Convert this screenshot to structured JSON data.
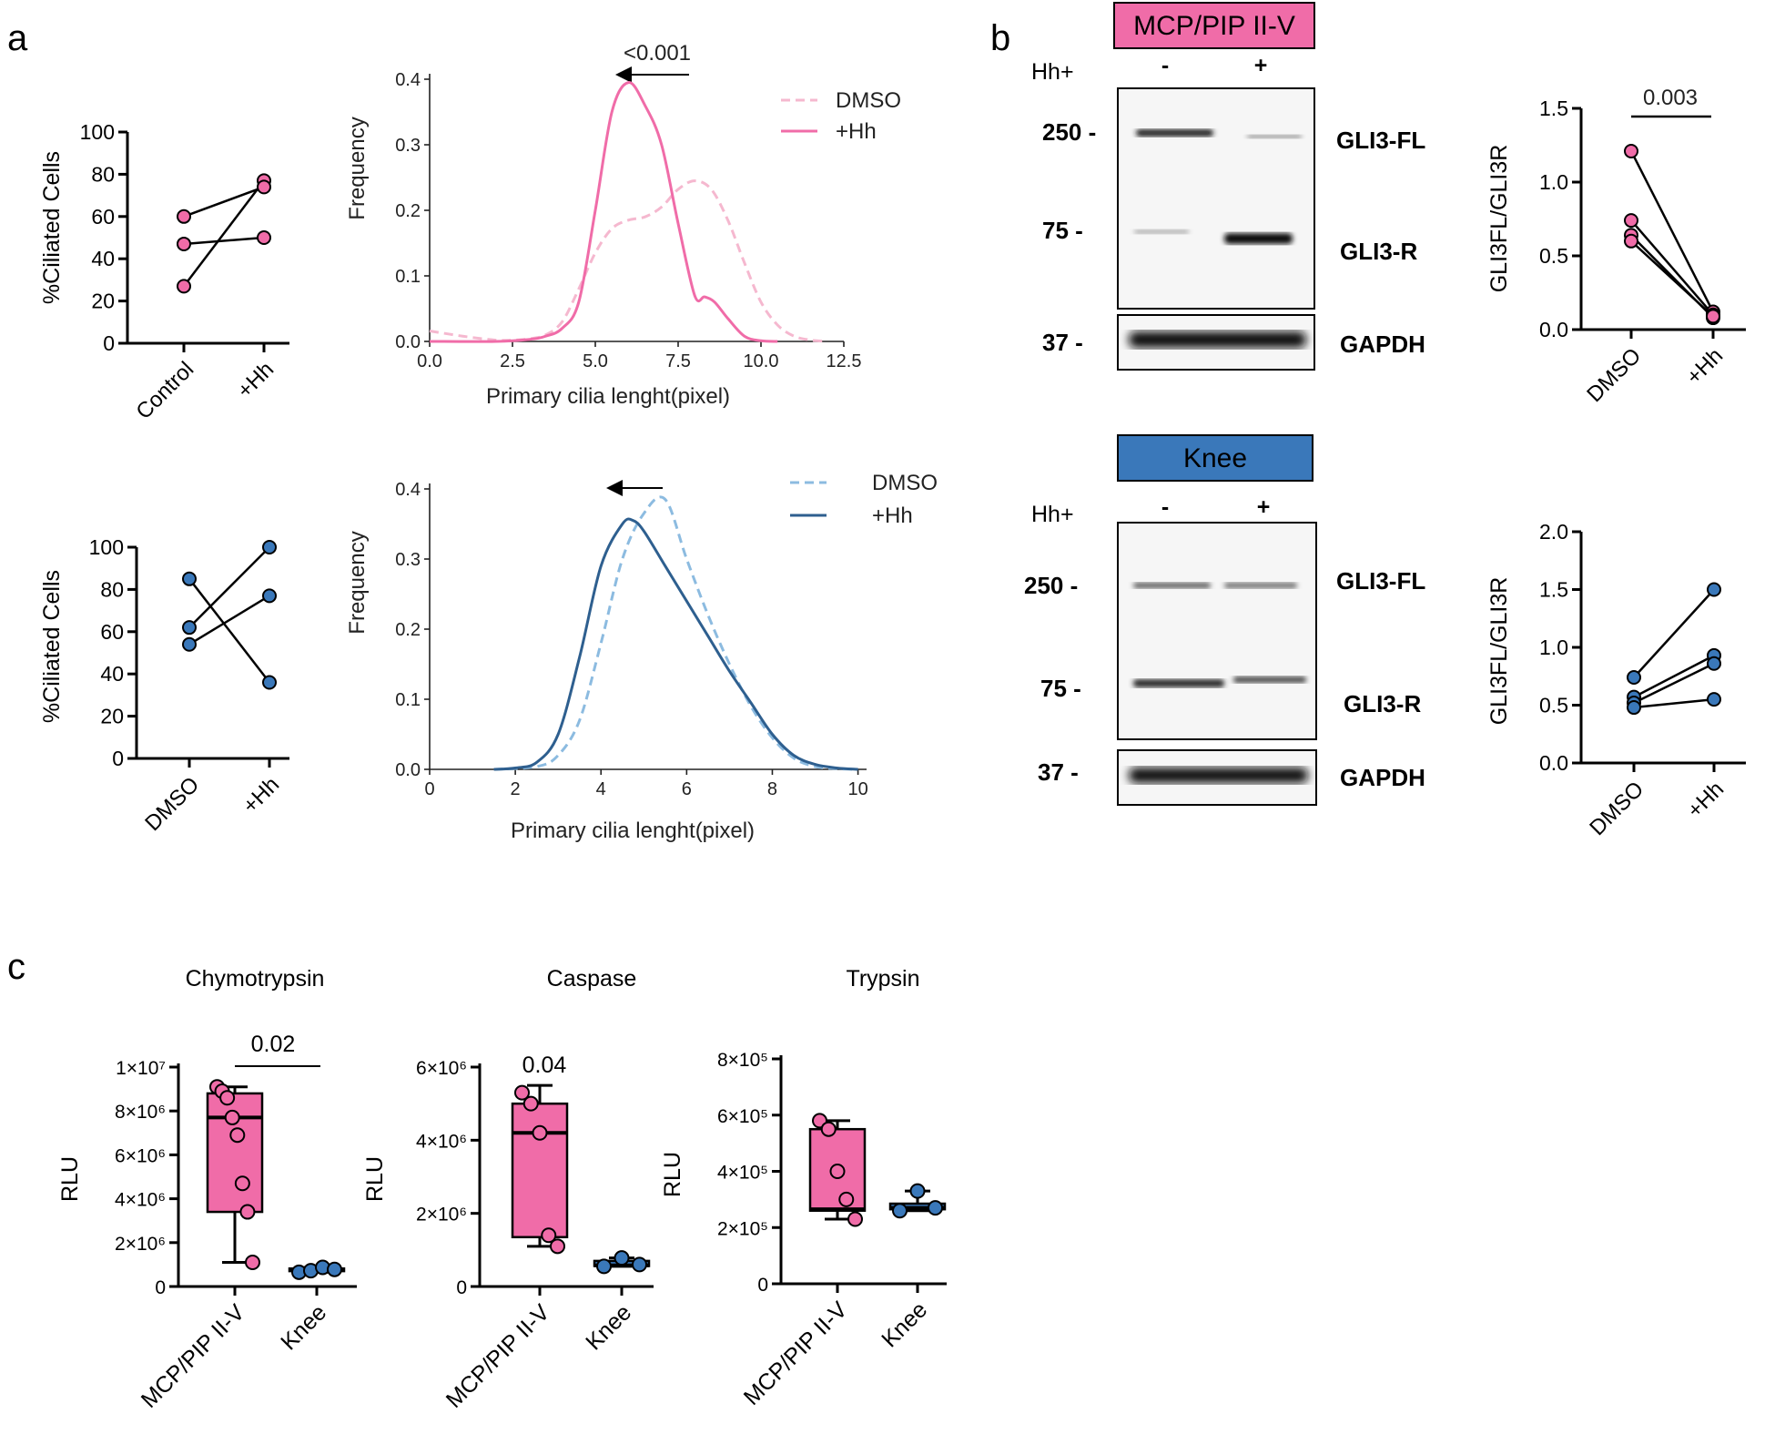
{
  "panels": {
    "a": "a",
    "b": "b",
    "c": "c"
  },
  "colors": {
    "pink": "#F06CA8",
    "pink_light": "#F5B8CF",
    "blue": "#3A78BA",
    "blue_dark": "#2E5F8F",
    "blue_light": "#8CBBE0"
  },
  "chart_data": [
    {
      "id": "a1",
      "type": "scatter",
      "categories": [
        "Control",
        "+Hh"
      ],
      "ylabel": "%Ciliated Cells",
      "ylim": [
        0,
        100
      ],
      "yticks": [
        0,
        20,
        40,
        60,
        80,
        100
      ],
      "pairs": [
        [
          27,
          77
        ],
        [
          47,
          50
        ],
        [
          60,
          74
        ]
      ],
      "color": "pink"
    },
    {
      "id": "a2",
      "type": "line",
      "xlabel": "Primary cilia lenght(pixel)",
      "ylabel": "Frequency",
      "xlim": [
        0,
        12.5
      ],
      "ylim": [
        0,
        0.4
      ],
      "xticks": [
        "0.0",
        "2.5",
        "5.0",
        "7.5",
        "10.0",
        "12.5"
      ],
      "yticks": [
        "0.0",
        "0.1",
        "0.2",
        "0.3",
        "0.4"
      ],
      "legend_position": "top-right",
      "annotation": "<0.001",
      "series": [
        {
          "name": "DMSO",
          "dashed": true,
          "color": "pink_light",
          "x": [
            0,
            1,
            2,
            2.5,
            3,
            3.5,
            4,
            4.5,
            5,
            5.5,
            6,
            6.5,
            7,
            7.5,
            8,
            8.5,
            9,
            9.5,
            10,
            10.5,
            11,
            11.5,
            12
          ],
          "y": [
            0.016,
            0.008,
            0.002,
            0.002,
            0.004,
            0.01,
            0.03,
            0.08,
            0.135,
            0.172,
            0.185,
            0.19,
            0.205,
            0.232,
            0.245,
            0.232,
            0.185,
            0.12,
            0.06,
            0.025,
            0.008,
            0.002,
            0
          ]
        },
        {
          "name": "+Hh",
          "dashed": false,
          "color": "pink",
          "x": [
            0,
            2,
            3,
            3.5,
            4,
            4.5,
            5,
            5.5,
            6,
            6.5,
            7,
            7.5,
            8,
            8.3,
            8.6,
            9,
            9.5,
            10,
            10.5
          ],
          "y": [
            0,
            0,
            0.003,
            0.008,
            0.02,
            0.06,
            0.2,
            0.35,
            0.395,
            0.36,
            0.3,
            0.18,
            0.07,
            0.068,
            0.06,
            0.035,
            0.008,
            0.001,
            0
          ]
        }
      ]
    },
    {
      "id": "a3",
      "type": "scatter",
      "categories": [
        "DMSO",
        "+Hh"
      ],
      "ylabel": "%Ciliated Cells",
      "ylim": [
        0,
        100
      ],
      "yticks": [
        0,
        20,
        40,
        60,
        80,
        100
      ],
      "pairs": [
        [
          85,
          36
        ],
        [
          62,
          100
        ],
        [
          54,
          77
        ]
      ],
      "color": "blue"
    },
    {
      "id": "a4",
      "type": "line",
      "xlabel": "Primary cilia lenght(pixel)",
      "ylabel": "Frequency",
      "xlim": [
        0,
        10.2
      ],
      "ylim": [
        0,
        0.4
      ],
      "xticks": [
        "0",
        "2",
        "4",
        "6",
        "8",
        "10"
      ],
      "yticks": [
        "0.0",
        "0.1",
        "0.2",
        "0.3",
        "0.4"
      ],
      "legend_position": "top-right",
      "series": [
        {
          "name": "DMSO",
          "dashed": true,
          "color": "blue_light",
          "x": [
            1.5,
            2.5,
            3,
            3.5,
            4,
            4.5,
            5,
            5.5,
            6,
            6.5,
            7,
            7.5,
            8,
            8.5,
            9,
            9.5,
            10
          ],
          "y": [
            0,
            0.004,
            0.02,
            0.07,
            0.18,
            0.3,
            0.365,
            0.385,
            0.3,
            0.22,
            0.15,
            0.09,
            0.045,
            0.016,
            0.004,
            0.001,
            0
          ]
        },
        {
          "name": "+Hh",
          "dashed": false,
          "color": "blue_dark",
          "x": [
            1.5,
            2,
            2.5,
            3,
            3.5,
            4,
            4.5,
            4.75,
            5,
            5.5,
            6,
            6.5,
            7,
            7.5,
            8,
            8.5,
            9,
            9.5,
            10
          ],
          "y": [
            0,
            0.002,
            0.01,
            0.05,
            0.16,
            0.29,
            0.35,
            0.355,
            0.34,
            0.29,
            0.24,
            0.19,
            0.14,
            0.095,
            0.05,
            0.02,
            0.007,
            0.002,
            0
          ]
        }
      ]
    },
    {
      "id": "b1",
      "type": "scatter",
      "categories": [
        "DMSO",
        "+Hh"
      ],
      "ylabel": "GLI3FL/GLI3R",
      "ylim": [
        0,
        1.5
      ],
      "yticks": [
        "0.0",
        "0.5",
        "1.0",
        "1.5"
      ],
      "pairs": [
        [
          1.21,
          0.12
        ],
        [
          0.74,
          0.1
        ],
        [
          0.64,
          0.08
        ],
        [
          0.6,
          0.09
        ]
      ],
      "annotation": "0.003",
      "color": "pink"
    },
    {
      "id": "b2",
      "type": "scatter",
      "categories": [
        "DMSO",
        "+Hh"
      ],
      "ylabel": "GLI3FL/GLI3R",
      "ylim": [
        0,
        2.0
      ],
      "yticks": [
        "0.0",
        "0.5",
        "1.0",
        "1.5",
        "2.0"
      ],
      "pairs": [
        [
          0.74,
          1.5
        ],
        [
          0.57,
          0.93
        ],
        [
          0.52,
          0.86
        ],
        [
          0.48,
          0.55
        ]
      ],
      "color": "blue"
    },
    {
      "id": "c1",
      "type": "box",
      "title": "Chymotrypsin",
      "ylabel": "RLU",
      "categories": [
        "MCP/PIP II-V",
        "Knee"
      ],
      "ylim": [
        0,
        10000000
      ],
      "yticks": [
        "0",
        "2×10⁶",
        "4×10⁶",
        "6×10⁶",
        "8×10⁶",
        "1×10⁷"
      ],
      "groups": [
        {
          "name": "MCP/PIP II-V",
          "color": "pink",
          "min": 1100000,
          "q1": 3400000,
          "median": 7700000,
          "q3": 8800000,
          "max": 9100000,
          "points": [
            9100000,
            8900000,
            8600000,
            7700000,
            6900000,
            4700000,
            3400000,
            1100000
          ]
        },
        {
          "name": "Knee",
          "color": "blue",
          "min": 650000,
          "q1": 700000,
          "median": 750000,
          "q3": 820000,
          "max": 870000,
          "points": [
            650000,
            720000,
            870000,
            780000
          ]
        }
      ],
      "annotation": "0.02"
    },
    {
      "id": "c2",
      "type": "box",
      "title": "Caspase",
      "ylabel": "RLU",
      "categories": [
        "MCP/PIP II-V",
        "Knee"
      ],
      "ylim": [
        0,
        6000000
      ],
      "yticks": [
        "0",
        "2×10⁶",
        "4×10⁶",
        "6×10⁶"
      ],
      "groups": [
        {
          "name": "MCP/PIP II-V",
          "color": "pink",
          "min": 1100000,
          "q1": 1350000,
          "median": 4200000,
          "q3": 5000000,
          "max": 5500000,
          "points": [
            5300000,
            5000000,
            4200000,
            1400000,
            1100000
          ]
        },
        {
          "name": "Knee",
          "color": "blue",
          "min": 550000,
          "q1": 560000,
          "median": 580000,
          "q3": 700000,
          "max": 780000,
          "points": [
            550000,
            780000,
            600000
          ]
        }
      ],
      "annotation": "0.04"
    },
    {
      "id": "c3",
      "type": "box",
      "title": "Trypsin",
      "ylabel": "RLU",
      "categories": [
        "MCP/PIP II-V",
        "Knee"
      ],
      "ylim": [
        0,
        800000
      ],
      "yticks": [
        "0",
        "2×10⁵",
        "4×10⁵",
        "6×10⁵",
        "8×10⁵"
      ],
      "groups": [
        {
          "name": "MCP/PIP II-V",
          "color": "pink",
          "min": 230000,
          "q1": 260000,
          "median": 265000,
          "q3": 550000,
          "max": 580000,
          "points": [
            580000,
            550000,
            400000,
            300000,
            230000
          ]
        },
        {
          "name": "Knee",
          "color": "blue",
          "min": 260000,
          "q1": 265000,
          "median": 270000,
          "q3": 285000,
          "max": 330000,
          "points": [
            260000,
            330000,
            270000
          ]
        }
      ]
    }
  ],
  "blots": [
    {
      "title": "MCP/PIP II-V",
      "title_color": "pink",
      "hh_label": "Hh+",
      "lanes": [
        "-",
        "+"
      ],
      "markers": [
        "250 -",
        "75 -",
        "37 -"
      ],
      "bands": [
        "GLI3-FL",
        "GLI3-R",
        "GAPDH"
      ]
    },
    {
      "title": "Knee",
      "title_color": "blue",
      "hh_label": "Hh+",
      "lanes": [
        "-",
        "+"
      ],
      "markers": [
        "250 -",
        "75 -",
        "37 -"
      ],
      "bands": [
        "GLI3-FL",
        "GLI3-R",
        "GAPDH"
      ]
    }
  ]
}
